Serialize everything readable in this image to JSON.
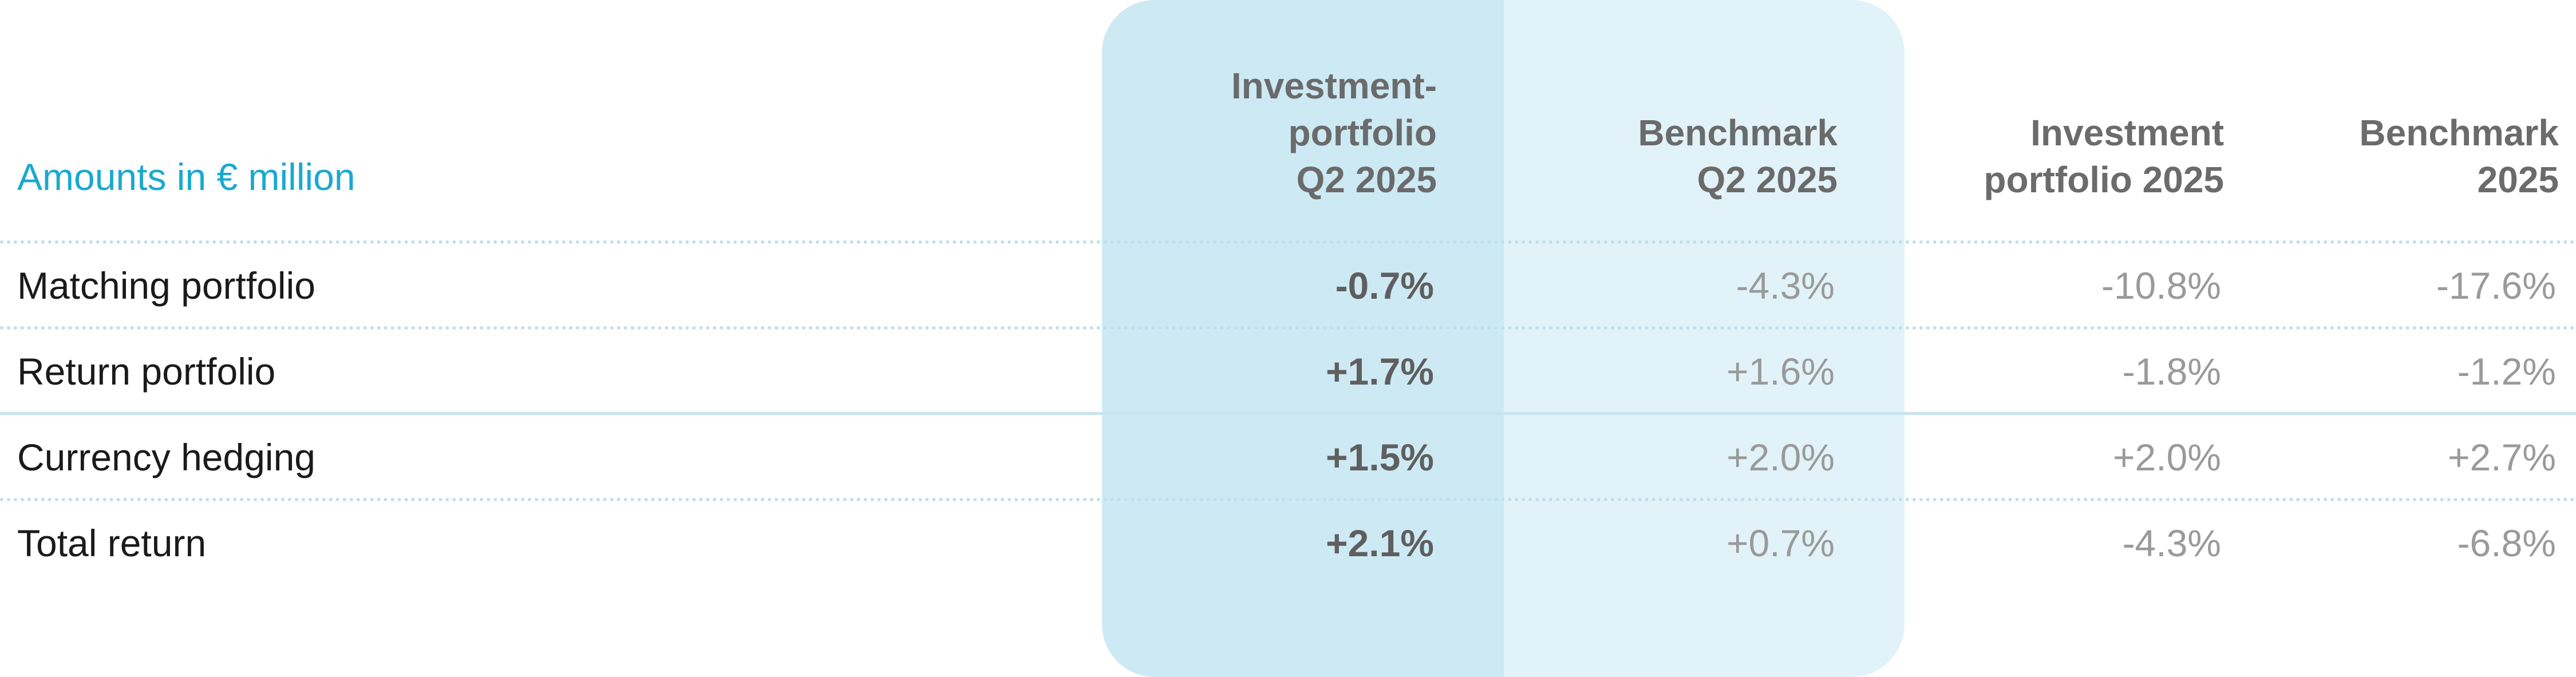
{
  "table": {
    "unit_label": "Amounts in € million",
    "columns": [
      {
        "lines": [
          "Investment-",
          "portfolio",
          "Q2 2025"
        ]
      },
      {
        "lines": [
          "Benchmark",
          "Q2 2025"
        ]
      },
      {
        "lines": [
          "Investment",
          "portfolio 2025"
        ]
      },
      {
        "lines": [
          "Benchmark",
          "2025"
        ]
      }
    ],
    "rows": [
      {
        "label": "Matching portfolio",
        "values": [
          "-0.7%",
          "-4.3%",
          "-10.8%",
          "-17.6%"
        ]
      },
      {
        "label": "Return portfolio",
        "values": [
          "+1.7%",
          "+1.6%",
          "-1.8%",
          "-1.2%"
        ]
      },
      {
        "label": "Currency hedging",
        "values": [
          "+1.5%",
          "+2.0%",
          "+2.0%",
          "+2.7%"
        ]
      },
      {
        "label": "Total return",
        "values": [
          "+2.1%",
          "+0.7%",
          "-4.3%",
          "-6.8%"
        ]
      }
    ],
    "colors": {
      "highlight_primary": "#cdeaf4",
      "highlight_secondary": "#e1f3f9",
      "unit_label": "#1aa9cf",
      "header_text": "#6b6b6b"
    }
  }
}
